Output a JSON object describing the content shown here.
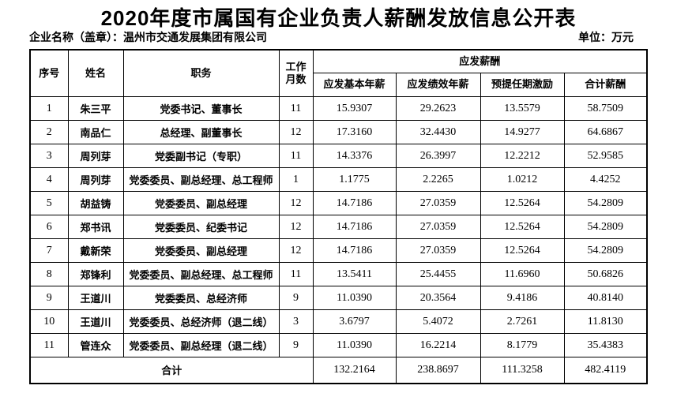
{
  "title": "2020年度市属国有企业负责人薪酬发放信息公开表",
  "company_label": "企业名称（盖章）：温州市交通发展集团有限公司",
  "unit_label": "单位：万元",
  "table": {
    "headers": {
      "seq": "序号",
      "name": "姓名",
      "position": "职务",
      "months": "工作月数",
      "salary_group": "应发薪酬",
      "base": "应发基本年薪",
      "performance": "应发绩效年薪",
      "incentive": "预提任期激励",
      "total": "合计薪酬"
    },
    "rows": [
      {
        "seq": "1",
        "name": "朱三平",
        "position": "党委书记、董事长",
        "months": "11",
        "base": "15.9307",
        "performance": "29.2623",
        "incentive": "13.5579",
        "total": "58.7509"
      },
      {
        "seq": "2",
        "name": "南品仁",
        "position": "总经理、副董事长",
        "months": "12",
        "base": "17.3160",
        "performance": "32.4430",
        "incentive": "14.9277",
        "total": "64.6867"
      },
      {
        "seq": "3",
        "name": "周列芽",
        "position": "党委副书记（专职）",
        "months": "11",
        "base": "14.3376",
        "performance": "26.3997",
        "incentive": "12.2212",
        "total": "52.9585"
      },
      {
        "seq": "4",
        "name": "周列芽",
        "position": "党委委员、副总经理、总工程师",
        "months": "1",
        "base": "1.1775",
        "performance": "2.2265",
        "incentive": "1.0212",
        "total": "4.4252"
      },
      {
        "seq": "5",
        "name": "胡益铸",
        "position": "党委委员、副总经理",
        "months": "12",
        "base": "14.7186",
        "performance": "27.0359",
        "incentive": "12.5264",
        "total": "54.2809"
      },
      {
        "seq": "6",
        "name": "郑书讯",
        "position": "党委委员、纪委书记",
        "months": "12",
        "base": "14.7186",
        "performance": "27.0359",
        "incentive": "12.5264",
        "total": "54.2809"
      },
      {
        "seq": "7",
        "name": "戴新荣",
        "position": "党委委员、副总经理",
        "months": "12",
        "base": "14.7186",
        "performance": "27.0359",
        "incentive": "12.5264",
        "total": "54.2809"
      },
      {
        "seq": "8",
        "name": "郑锋利",
        "position": "党委委员、副总经理、总工程师",
        "months": "11",
        "base": "13.5411",
        "performance": "25.4455",
        "incentive": "11.6960",
        "total": "50.6826"
      },
      {
        "seq": "9",
        "name": "王道川",
        "position": "党委委员、总经济师",
        "months": "9",
        "base": "11.0390",
        "performance": "20.3564",
        "incentive": "9.4186",
        "total": "40.8140"
      },
      {
        "seq": "10",
        "name": "王道川",
        "position": "党委委员、总经济师（退二线）",
        "months": "3",
        "base": "3.6797",
        "performance": "5.4072",
        "incentive": "2.7261",
        "total": "11.8130"
      },
      {
        "seq": "11",
        "name": "管连众",
        "position": "党委委员、副总经理（退二线）",
        "months": "9",
        "base": "11.0390",
        "performance": "16.2214",
        "incentive": "8.1779",
        "total": "35.4383"
      }
    ],
    "total_row": {
      "label": "合计",
      "base": "132.2164",
      "performance": "238.8697",
      "incentive": "111.3258",
      "total": "482.4119"
    }
  }
}
